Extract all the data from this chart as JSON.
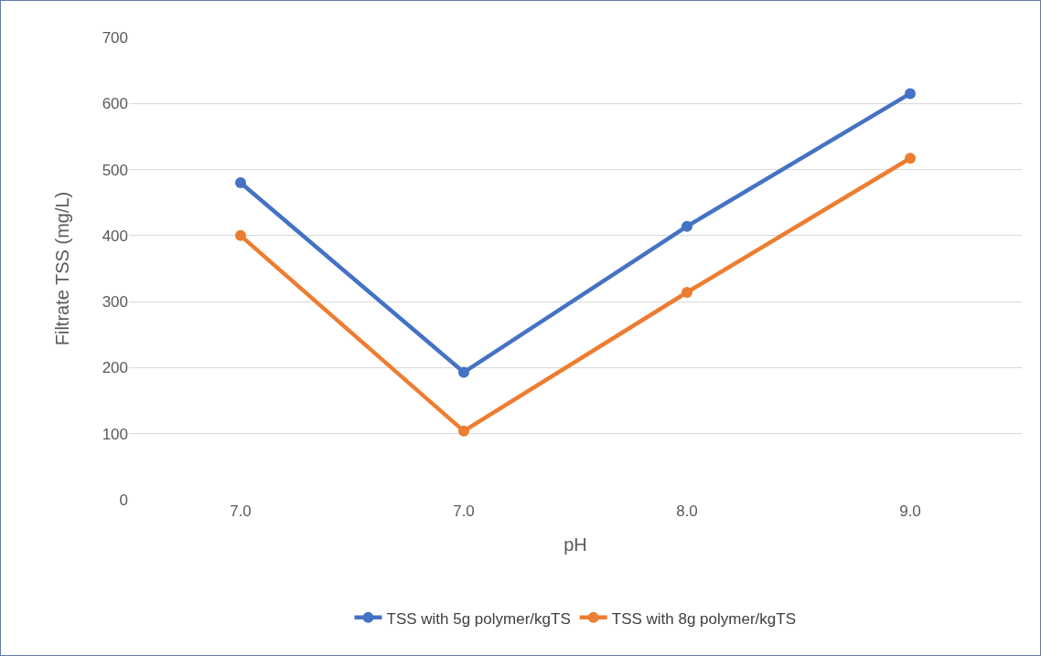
{
  "chart_data": {
    "type": "line",
    "xlabel": "pH",
    "ylabel": "Filtrate TSS (mg/L)",
    "categories": [
      "7.0",
      "7.0",
      "8.0",
      "9.0"
    ],
    "series": [
      {
        "name": "TSS with 5g polymer/kgTS",
        "color": "#4472c4",
        "values": [
          480,
          193,
          414,
          615
        ]
      },
      {
        "name": "TSS with 8g polymer/kgTS",
        "color": "#ed7d31",
        "values": [
          400,
          104,
          314,
          517
        ]
      }
    ],
    "ylim": [
      0,
      700
    ],
    "yticks": [
      0,
      100,
      200,
      300,
      400,
      500,
      600,
      700
    ],
    "grid": "y",
    "legend": "bottom",
    "marker": "circle",
    "line_style": "solid"
  }
}
